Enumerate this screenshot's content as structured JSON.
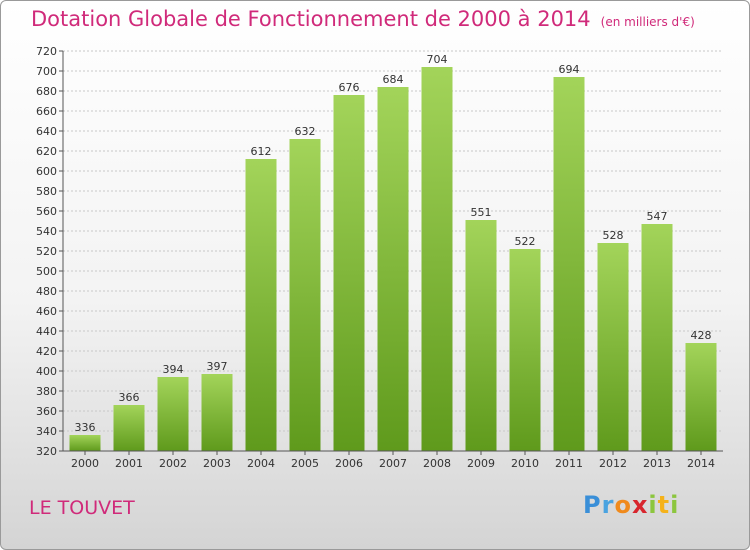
{
  "header": {
    "title": "Dotation Globale de Fonctionnement de 2000 à 2014",
    "unit": "(en milliers d'€)"
  },
  "footer": {
    "commune": "LE TOUVET",
    "logo_text": "Proxiti"
  },
  "colors": {
    "title": "#d02a7a",
    "bar_top": "#a3d45a",
    "bar_bottom": "#5f9a1c",
    "grid": "#c8c8c8",
    "axis": "#555555"
  },
  "chart_data": {
    "type": "bar",
    "categories": [
      "2000",
      "2001",
      "2002",
      "2003",
      "2004",
      "2005",
      "2006",
      "2007",
      "2008",
      "2009",
      "2010",
      "2011",
      "2012",
      "2013",
      "2014"
    ],
    "values": [
      336,
      366,
      394,
      397,
      612,
      632,
      676,
      684,
      704,
      551,
      522,
      694,
      528,
      547,
      428
    ],
    "title": "Dotation Globale de Fonctionnement de 2000 à 2014",
    "xlabel": "",
    "ylabel": "",
    "ylim": [
      320,
      720
    ],
    "yticks": [
      320,
      340,
      360,
      380,
      400,
      420,
      440,
      460,
      480,
      500,
      520,
      540,
      560,
      580,
      600,
      620,
      640,
      660,
      680,
      700,
      720
    ],
    "grid": true,
    "data_labels": true
  }
}
